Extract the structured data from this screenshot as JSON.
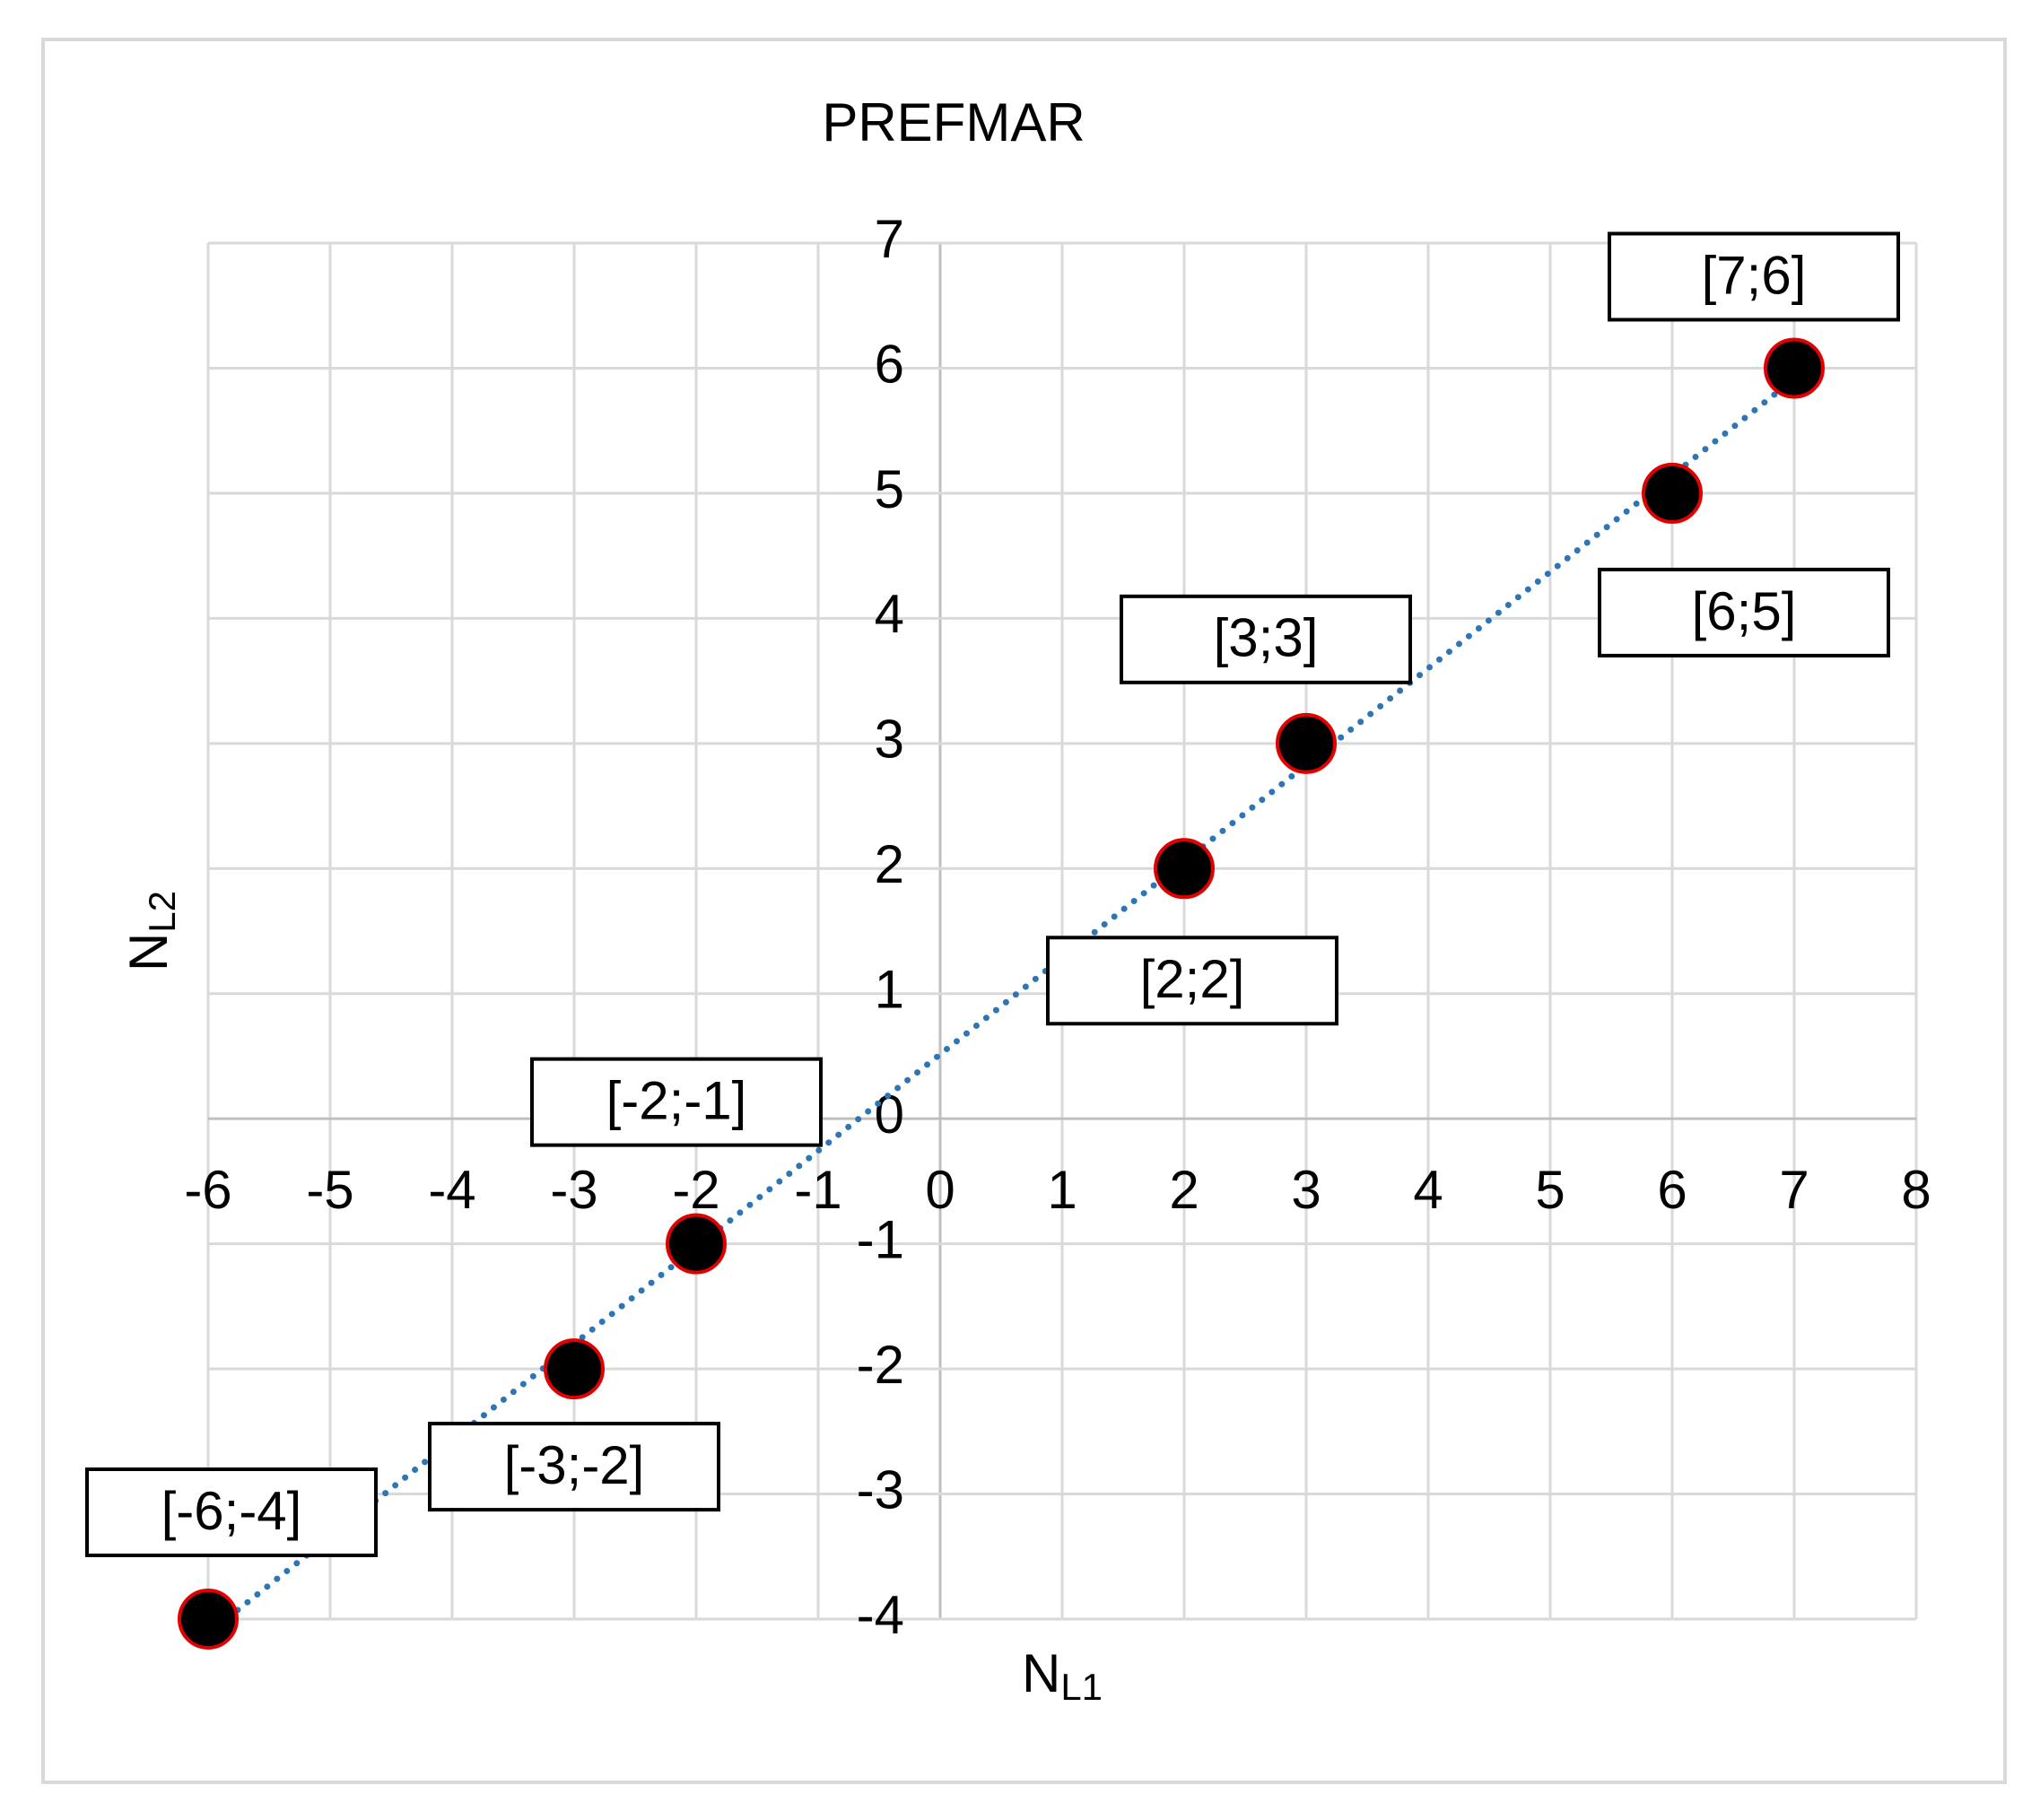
{
  "chart_data": {
    "type": "scatter",
    "title": "PREFMAR",
    "x": [
      -6,
      -3,
      -2,
      2,
      3,
      6,
      7
    ],
    "values": [
      -4,
      -2,
      -1,
      2,
      3,
      5,
      6
    ],
    "value_labels": [
      "[-6;-4]",
      "[-3;-2]",
      "[-2;-1]",
      "[2;2]",
      "[3;3]",
      "[6;5]",
      "[7;6]"
    ],
    "marker_color": "#000000",
    "marker_edge_color": "#e00000",
    "trendline": {
      "type": "linear",
      "color": "#2e75b6",
      "style": "dotted"
    },
    "xlabel": "N",
    "xlabel_sub": "L1",
    "ylabel": "N",
    "ylabel_sub": "L2",
    "xlim": [
      -6,
      8
    ],
    "xticks": [
      -6,
      -5,
      -4,
      -3,
      -2,
      -1,
      0,
      1,
      2,
      3,
      4,
      5,
      6,
      7,
      8
    ],
    "ylim": [
      -4,
      7
    ],
    "yticks": [
      -4,
      -3,
      -2,
      -1,
      0,
      1,
      2,
      3,
      4,
      5,
      6,
      7
    ],
    "grid": true
  }
}
